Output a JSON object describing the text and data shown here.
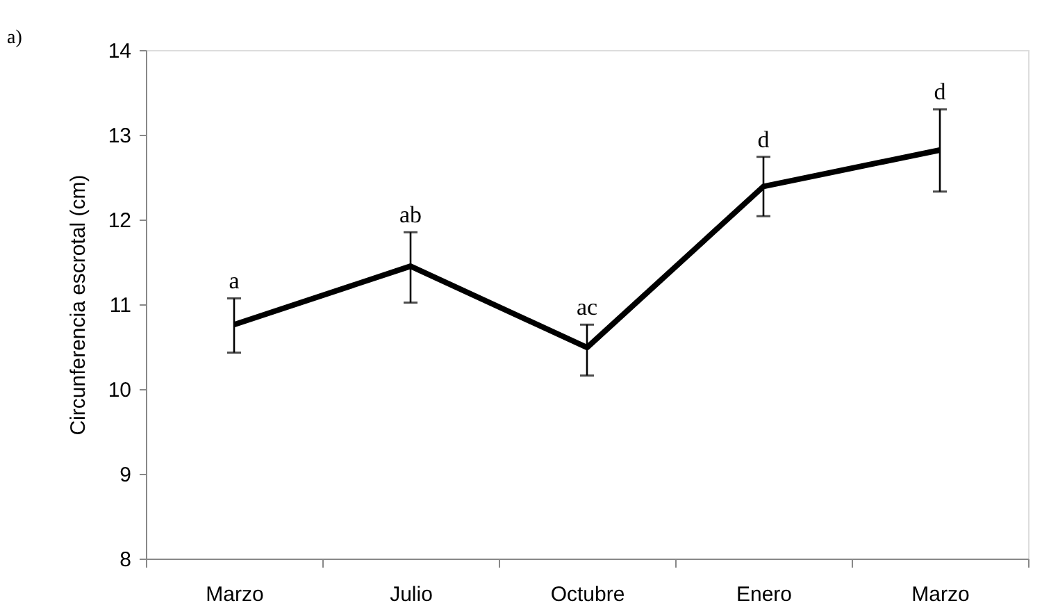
{
  "chart_data": {
    "type": "line",
    "categories": [
      "Marzo",
      "Julio",
      "Octubre",
      "Enero",
      "Marzo"
    ],
    "ylabel": "Circunferencia escrotal (cm)",
    "series": [
      {
        "color": "#000000",
        "values": [
          10.76,
          11.45,
          10.49,
          12.39,
          12.82
        ],
        "errors": [
          [
            10.43,
            11.07
          ],
          [
            11.02,
            11.85
          ],
          [
            10.16,
            10.76
          ],
          [
            12.04,
            12.74
          ],
          [
            12.33,
            13.3
          ]
        ]
      }
    ],
    "ylim": [
      8,
      14
    ],
    "yticks": [
      8,
      9,
      10,
      11,
      12,
      13,
      14
    ],
    "grid": false,
    "marker": "none",
    "line_style": "solid",
    "annotations": [
      "a)",
      {
        "text": "a",
        "x": "Marzo",
        "y": 11.07
      },
      {
        "text": "ab",
        "x": "Julio",
        "y": 11.85
      },
      {
        "text": "ac",
        "x": "Octubre",
        "y": 10.76
      },
      {
        "text": "d",
        "x": "Enero",
        "y": 12.74
      },
      "d"
    ]
  }
}
